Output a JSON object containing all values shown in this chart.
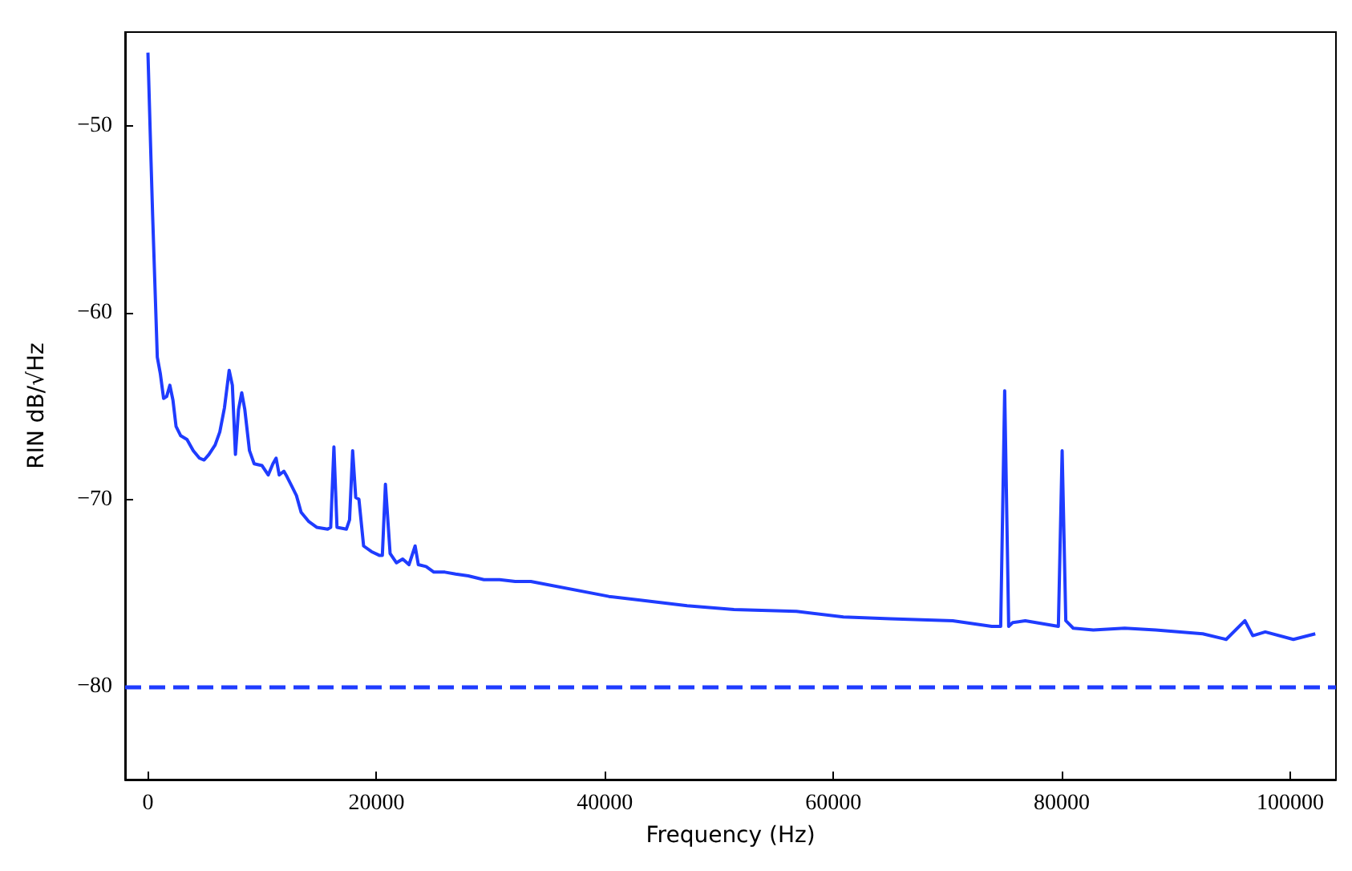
{
  "chart_data": {
    "type": "line",
    "xlabel": "Frequency (Hz)",
    "ylabel": "RIN dB/√Hz",
    "xlim": [
      -2000,
      104000
    ],
    "ylim": [
      -85,
      -45
    ],
    "xticks": [
      0,
      20000,
      40000,
      60000,
      80000,
      100000
    ],
    "yticks": [
      -80,
      -70,
      -60,
      -50
    ],
    "grid": false,
    "marker": "none",
    "line_style": "solid",
    "ref_lines": [
      {
        "axis": "y",
        "value": -80,
        "label": null,
        "color": "#1f3cff",
        "line_style": "dashed"
      }
    ],
    "series": [
      {
        "color": "#1f3cff",
        "x": [
          0,
          270,
          410,
          820,
          1090,
          1370,
          1640,
          1920,
          2190,
          2460,
          2870,
          3420,
          3970,
          4510,
          4920,
          5340,
          5880,
          6290,
          6700,
          7110,
          7390,
          7660,
          7930,
          8210,
          8480,
          8890,
          9300,
          9990,
          10530,
          10940,
          11220,
          11490,
          11900,
          12180,
          12590,
          13000,
          13410,
          14090,
          14770,
          15730,
          16000,
          16280,
          16550,
          17370,
          17650,
          17920,
          18190,
          18470,
          18880,
          19560,
          20250,
          20520,
          20790,
          21200,
          21750,
          22300,
          22850,
          23390,
          23670,
          24350,
          25030,
          25990,
          26940,
          28040,
          29410,
          30780,
          32150,
          33520,
          40350,
          43090,
          47200,
          51300,
          56770,
          60880,
          64980,
          70450,
          73870,
          74650,
          75000,
          75350,
          75700,
          76800,
          79700,
          80030,
          80350,
          81000,
          82760,
          85500,
          88230,
          92340,
          94390,
          96030,
          96720,
          97810,
          100270,
          102190
        ],
        "values": [
          -46.1,
          -51.9,
          -54.8,
          -62.4,
          -63.3,
          -64.6,
          -64.5,
          -63.9,
          -64.7,
          -66.1,
          -66.6,
          -66.8,
          -67.4,
          -67.8,
          -67.9,
          -67.6,
          -67.1,
          -66.4,
          -65.1,
          -63.1,
          -63.9,
          -67.6,
          -65.2,
          -64.3,
          -65.2,
          -67.4,
          -68.1,
          -68.2,
          -68.7,
          -68.1,
          -67.8,
          -68.7,
          -68.5,
          -68.8,
          -69.3,
          -69.8,
          -70.7,
          -71.2,
          -71.5,
          -71.6,
          -71.5,
          -67.2,
          -71.5,
          -71.6,
          -71.1,
          -67.4,
          -69.9,
          -70.0,
          -72.5,
          -72.8,
          -73.0,
          -73.0,
          -69.2,
          -72.9,
          -73.4,
          -73.2,
          -73.5,
          -72.5,
          -73.5,
          -73.6,
          -73.9,
          -73.9,
          -74.0,
          -74.1,
          -74.3,
          -74.3,
          -74.4,
          -74.4,
          -75.2,
          -75.4,
          -75.7,
          -75.9,
          -76.0,
          -76.3,
          -76.4,
          -76.5,
          -76.8,
          -76.8,
          -64.2,
          -76.8,
          -76.6,
          -76.5,
          -76.8,
          -67.4,
          -76.5,
          -76.9,
          -77.0,
          -76.9,
          -77.0,
          -77.2,
          -77.5,
          -76.5,
          -77.3,
          -77.1,
          -77.5,
          -77.2
        ]
      }
    ]
  }
}
